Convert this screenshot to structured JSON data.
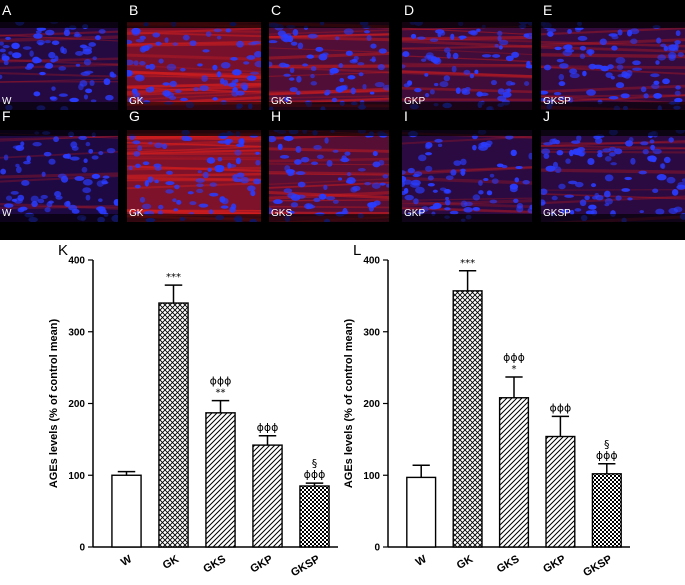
{
  "micrographs": [
    {
      "letter": "A",
      "label": "W",
      "intensity": 0.15,
      "row": 0,
      "col": 0
    },
    {
      "letter": "B",
      "label": "GK",
      "intensity": 0.9,
      "row": 0,
      "col": 1
    },
    {
      "letter": "C",
      "label": "GKS",
      "intensity": 0.55,
      "row": 0,
      "col": 2
    },
    {
      "letter": "D",
      "label": "GKP",
      "intensity": 0.4,
      "row": 0,
      "col": 3
    },
    {
      "letter": "E",
      "label": "GKSP",
      "intensity": 0.3,
      "row": 0,
      "col": 4
    },
    {
      "letter": "F",
      "label": "W",
      "intensity": 0.1,
      "row": 1,
      "col": 0
    },
    {
      "letter": "G",
      "label": "GK",
      "intensity": 0.95,
      "row": 1,
      "col": 1
    },
    {
      "letter": "H",
      "label": "GKS",
      "intensity": 0.6,
      "row": 1,
      "col": 2
    },
    {
      "letter": "I",
      "label": "GKP",
      "intensity": 0.2,
      "row": 1,
      "col": 3
    },
    {
      "letter": "J",
      "label": "GKSP",
      "intensity": 0.2,
      "row": 1,
      "col": 4
    }
  ],
  "colors": {
    "red_stain": "#d21e1e",
    "blue_stain": "#2a3cff",
    "background": "#000000"
  },
  "chart_data": [
    {
      "panel": "K",
      "type": "bar",
      "categories": [
        "W",
        "GK",
        "GKS",
        "GKP",
        "GKSP"
      ],
      "values": [
        100,
        340,
        187,
        142,
        85
      ],
      "errors": [
        5,
        25,
        17,
        13,
        4
      ],
      "annotations": [
        [],
        [
          "***"
        ],
        [
          "ϕϕϕ",
          "**"
        ],
        [
          "ϕϕϕ"
        ],
        [
          "§",
          "ϕϕϕ"
        ]
      ],
      "ylabel": "AGEs levels (% of control mean)",
      "ylim": [
        0,
        400
      ],
      "yticks": [
        0,
        100,
        200,
        300,
        400
      ],
      "patterns": [
        "none",
        "crosshatch",
        "diagonal",
        "diagonal",
        "dots"
      ]
    },
    {
      "panel": "L",
      "type": "bar",
      "categories": [
        "W",
        "GK",
        "GKS",
        "GKP",
        "GKSP"
      ],
      "values": [
        97,
        357,
        208,
        154,
        102
      ],
      "errors": [
        17,
        28,
        29,
        28,
        14
      ],
      "annotations": [
        [],
        [
          "***"
        ],
        [
          "ϕϕϕ",
          "*"
        ],
        [
          "ϕϕϕ"
        ],
        [
          "§",
          "ϕϕϕ"
        ]
      ],
      "ylabel": "AGEs levels (% of control mean)",
      "ylim": [
        0,
        400
      ],
      "yticks": [
        0,
        100,
        200,
        300,
        400
      ],
      "patterns": [
        "none",
        "crosshatch",
        "diagonal",
        "diagonal",
        "dots"
      ]
    }
  ]
}
